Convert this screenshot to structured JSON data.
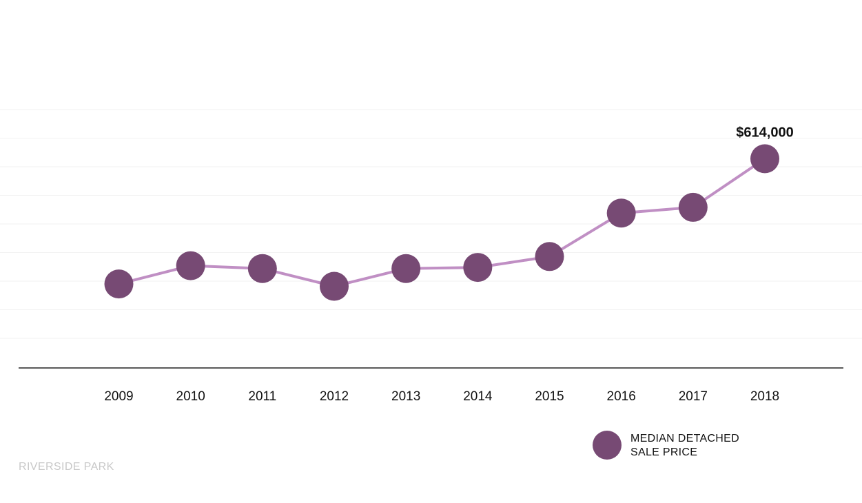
{
  "colors": {
    "marker": "#774a74",
    "line": "#c08fc4",
    "axis": "#222222",
    "grid": "#f2f2f2",
    "footer": "#c8c8c8"
  },
  "chart_data": {
    "type": "line",
    "x": [
      "2009",
      "2010",
      "2011",
      "2012",
      "2013",
      "2014",
      "2015",
      "2016",
      "2017",
      "2018"
    ],
    "series": [
      {
        "name": "MEDIAN DETACHED SALE PRICE",
        "values": [
          395000,
          427000,
          422000,
          391000,
          422000,
          424000,
          443000,
          519000,
          529000,
          614000
        ]
      }
    ],
    "data_labels": [
      {
        "x": "2018",
        "text": "$614,000"
      }
    ],
    "ylim": [
      0,
      1000000
    ],
    "grid": true,
    "legend_position": "bottom-right"
  },
  "legend": {
    "line1": "MEDIAN DETACHED",
    "line2": "SALE PRICE"
  },
  "footer": {
    "label": "RIVERSIDE PARK"
  }
}
